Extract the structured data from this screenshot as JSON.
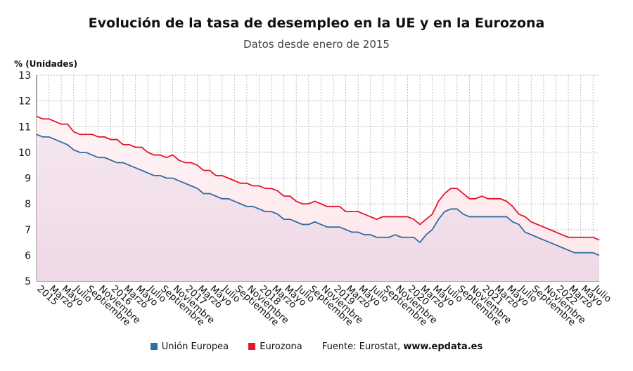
{
  "title": "Evolución de la tasa de desempleo en la UE y en la Eurozona",
  "subtitle": "Datos desde enero de 2015",
  "colors": {
    "ue": "#2f6da3",
    "ez": "#e3162b",
    "ez_fill": "#fde6ea",
    "ue_fill": "#eed9e6",
    "grid": "#bdbdbd"
  },
  "footer": {
    "source_label": "Fuente: Eurostat, ",
    "source_site": "www.epdata.es"
  },
  "chart_data": {
    "type": "line",
    "title": "Evolución de la tasa de desempleo en la UE y en la Eurozona",
    "subtitle": "Datos desde enero de 2015",
    "ylabel": "% (Unidades)",
    "ylim": [
      5,
      13
    ],
    "yticks": [
      5,
      6,
      7,
      8,
      9,
      10,
      11,
      12,
      13
    ],
    "grid": true,
    "legend": "bottom",
    "x_ticks": [
      "2015",
      "Marzo",
      "Mayo",
      "Julio",
      "Septiembre",
      "Noviembre",
      "2016",
      "Marzo",
      "Mayo",
      "Julio",
      "Septiembre",
      "Noviembre",
      "2017",
      "Marzo",
      "Mayo",
      "Julio",
      "Septiembre",
      "Noviembre",
      "2018",
      "Marzo",
      "Mayo",
      "Julio",
      "Septiembre",
      "Noviembre",
      "2019",
      "Marzo",
      "Mayo",
      "Julio",
      "Septiembre",
      "Noviembre",
      "2020",
      "Marzo",
      "Mayo",
      "Julio",
      "Septiembre",
      "Noviembre",
      "2021",
      "Marzo",
      "Mayo",
      "Julio",
      "Septiembre",
      "Noviembre",
      "2022",
      "Marzo",
      "Mayo",
      "Julio"
    ],
    "series": [
      {
        "name": "Unión Europea",
        "values": [
          10.7,
          10.6,
          10.6,
          10.5,
          10.4,
          10.3,
          10.1,
          10.0,
          10.0,
          9.9,
          9.8,
          9.8,
          9.7,
          9.6,
          9.6,
          9.5,
          9.4,
          9.3,
          9.2,
          9.1,
          9.1,
          9.0,
          9.0,
          8.9,
          8.8,
          8.7,
          8.6,
          8.4,
          8.4,
          8.3,
          8.2,
          8.2,
          8.1,
          8.0,
          7.9,
          7.9,
          7.8,
          7.7,
          7.7,
          7.6,
          7.4,
          7.4,
          7.3,
          7.2,
          7.2,
          7.3,
          7.2,
          7.1,
          7.1,
          7.1,
          7.0,
          6.9,
          6.9,
          6.8,
          6.8,
          6.7,
          6.7,
          6.7,
          6.8,
          6.7,
          6.7,
          6.7,
          6.5,
          6.8,
          7.0,
          7.4,
          7.7,
          7.8,
          7.8,
          7.6,
          7.5,
          7.5,
          7.5,
          7.5,
          7.5,
          7.5,
          7.5,
          7.3,
          7.2,
          6.9,
          6.8,
          6.7,
          6.6,
          6.5,
          6.4,
          6.3,
          6.2,
          6.1,
          6.1,
          6.1,
          6.1,
          6.0
        ]
      },
      {
        "name": "Eurozona",
        "values": [
          11.4,
          11.3,
          11.3,
          11.2,
          11.1,
          11.1,
          10.8,
          10.7,
          10.7,
          10.7,
          10.6,
          10.6,
          10.5,
          10.5,
          10.3,
          10.3,
          10.2,
          10.2,
          10.0,
          9.9,
          9.9,
          9.8,
          9.9,
          9.7,
          9.6,
          9.6,
          9.5,
          9.3,
          9.3,
          9.1,
          9.1,
          9.0,
          8.9,
          8.8,
          8.8,
          8.7,
          8.7,
          8.6,
          8.6,
          8.5,
          8.3,
          8.3,
          8.1,
          8.0,
          8.0,
          8.1,
          8.0,
          7.9,
          7.9,
          7.9,
          7.7,
          7.7,
          7.7,
          7.6,
          7.5,
          7.4,
          7.5,
          7.5,
          7.5,
          7.5,
          7.5,
          7.4,
          7.2,
          7.4,
          7.6,
          8.1,
          8.4,
          8.6,
          8.6,
          8.4,
          8.2,
          8.2,
          8.3,
          8.2,
          8.2,
          8.2,
          8.1,
          7.9,
          7.6,
          7.5,
          7.3,
          7.2,
          7.1,
          7.0,
          6.9,
          6.8,
          6.7,
          6.7,
          6.7,
          6.7,
          6.7,
          6.6
        ]
      }
    ]
  }
}
